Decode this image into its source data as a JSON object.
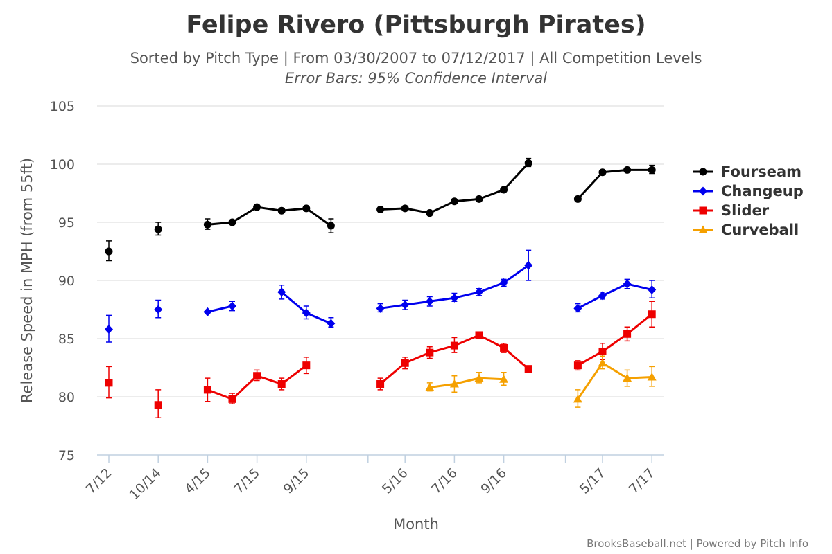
{
  "chart_data": {
    "type": "line",
    "title": "Felipe Rivero (Pittsburgh Pirates)",
    "subtitle": "Sorted by Pitch Type | From 03/30/2007 to 07/12/2017 | All Competition Levels",
    "subtitle2": "Error Bars: 95% Confidence Interval",
    "xlabel": "Month",
    "ylabel": "Release Speed in MPH (from 55ft)",
    "ylim": [
      75,
      105
    ],
    "yticks": [
      75,
      80,
      85,
      90,
      95,
      100,
      105
    ],
    "grid": true,
    "legend_position": "right",
    "credit": "BrooksBaseball.net | Powered by Pitch Info",
    "x_tick_labels": [
      {
        "slot": 0,
        "label": "7/12"
      },
      {
        "slot": 2,
        "label": "10/14"
      },
      {
        "slot": 4,
        "label": "4/15"
      },
      {
        "slot": 6,
        "label": "7/15"
      },
      {
        "slot": 8,
        "label": "9/15"
      },
      {
        "slot": 12,
        "label": "5/16"
      },
      {
        "slot": 14,
        "label": "7/16"
      },
      {
        "slot": 16,
        "label": "9/16"
      },
      {
        "slot": 20,
        "label": "5/17"
      },
      {
        "slot": 22,
        "label": "7/17"
      }
    ],
    "segment_breaks": [
      10.5,
      18.5
    ],
    "series": [
      {
        "name": "Fourseam",
        "color": "#000000",
        "marker": "circle",
        "points": [
          {
            "x": 0,
            "y": 92.5,
            "lo": 91.7,
            "hi": 93.4
          },
          {
            "x": 2,
            "y": 94.4,
            "lo": 93.9,
            "hi": 95.0
          },
          {
            "x": 4,
            "y": 94.8,
            "lo": 94.4,
            "hi": 95.3
          },
          {
            "x": 5,
            "y": 95.0
          },
          {
            "x": 6,
            "y": 96.3
          },
          {
            "x": 7,
            "y": 96.0
          },
          {
            "x": 8,
            "y": 96.2
          },
          {
            "x": 9,
            "y": 94.7,
            "lo": 94.1,
            "hi": 95.3
          },
          {
            "x": 11,
            "y": 96.1
          },
          {
            "x": 12,
            "y": 96.2
          },
          {
            "x": 13,
            "y": 95.8
          },
          {
            "x": 14,
            "y": 96.8
          },
          {
            "x": 15,
            "y": 97.0
          },
          {
            "x": 16,
            "y": 97.8
          },
          {
            "x": 17,
            "y": 100.1,
            "lo": 99.8,
            "hi": 100.5
          },
          {
            "x": 19,
            "y": 97.0
          },
          {
            "x": 20,
            "y": 99.3
          },
          {
            "x": 21,
            "y": 99.5
          },
          {
            "x": 22,
            "y": 99.5,
            "lo": 99.2,
            "hi": 99.9
          }
        ]
      },
      {
        "name": "Changeup",
        "color": "#0000ee",
        "marker": "diamond",
        "points": [
          {
            "x": 0,
            "y": 85.8,
            "lo": 84.7,
            "hi": 87.0
          },
          {
            "x": 2,
            "y": 87.5,
            "lo": 86.8,
            "hi": 88.3
          },
          {
            "x": 4,
            "y": 87.3
          },
          {
            "x": 5,
            "y": 87.8,
            "lo": 87.4,
            "hi": 88.2
          },
          {
            "x": 7,
            "y": 89.0,
            "lo": 88.4,
            "hi": 89.6
          },
          {
            "x": 8,
            "y": 87.2,
            "lo": 86.7,
            "hi": 87.8
          },
          {
            "x": 9,
            "y": 86.3,
            "lo": 86.0,
            "hi": 86.8
          },
          {
            "x": 11,
            "y": 87.6,
            "lo": 87.3,
            "hi": 88.0
          },
          {
            "x": 12,
            "y": 87.9,
            "lo": 87.5,
            "hi": 88.3
          },
          {
            "x": 13,
            "y": 88.2,
            "lo": 87.8,
            "hi": 88.6
          },
          {
            "x": 14,
            "y": 88.5,
            "lo": 88.2,
            "hi": 88.9
          },
          {
            "x": 15,
            "y": 89.0,
            "lo": 88.7,
            "hi": 89.3
          },
          {
            "x": 16,
            "y": 89.8,
            "lo": 89.5,
            "hi": 90.1
          },
          {
            "x": 17,
            "y": 91.3,
            "lo": 90.0,
            "hi": 92.6
          },
          {
            "x": 19,
            "y": 87.6,
            "lo": 87.3,
            "hi": 88.0
          },
          {
            "x": 20,
            "y": 88.7,
            "lo": 88.4,
            "hi": 89.0
          },
          {
            "x": 21,
            "y": 89.7,
            "lo": 89.3,
            "hi": 90.1
          },
          {
            "x": 22,
            "y": 89.2,
            "lo": 88.5,
            "hi": 90.0
          }
        ]
      },
      {
        "name": "Slider",
        "color": "#ee0000",
        "marker": "square",
        "points": [
          {
            "x": 0,
            "y": 81.2,
            "lo": 79.9,
            "hi": 82.6
          },
          {
            "x": 2,
            "y": 79.3,
            "lo": 78.2,
            "hi": 80.6
          },
          {
            "x": 4,
            "y": 80.6,
            "lo": 79.6,
            "hi": 81.6
          },
          {
            "x": 5,
            "y": 79.8,
            "lo": 79.4,
            "hi": 80.3
          },
          {
            "x": 6,
            "y": 81.8,
            "lo": 81.4,
            "hi": 82.3
          },
          {
            "x": 7,
            "y": 81.1,
            "lo": 80.6,
            "hi": 81.6
          },
          {
            "x": 8,
            "y": 82.7,
            "lo": 82.0,
            "hi": 83.4
          },
          {
            "x": 11,
            "y": 81.1,
            "lo": 80.6,
            "hi": 81.6
          },
          {
            "x": 12,
            "y": 82.9,
            "lo": 82.4,
            "hi": 83.4
          },
          {
            "x": 13,
            "y": 83.8,
            "lo": 83.3,
            "hi": 84.3
          },
          {
            "x": 14,
            "y": 84.4,
            "lo": 83.8,
            "hi": 85.1
          },
          {
            "x": 15,
            "y": 85.3
          },
          {
            "x": 16,
            "y": 84.2,
            "lo": 83.8,
            "hi": 84.6
          },
          {
            "x": 17,
            "y": 82.4
          },
          {
            "x": 19,
            "y": 82.7,
            "lo": 82.3,
            "hi": 83.1
          },
          {
            "x": 20,
            "y": 83.9,
            "lo": 83.2,
            "hi": 84.6
          },
          {
            "x": 21,
            "y": 85.4,
            "lo": 84.8,
            "hi": 86.0
          },
          {
            "x": 22,
            "y": 87.1,
            "lo": 86.0,
            "hi": 88.2
          }
        ]
      },
      {
        "name": "Curveball",
        "color": "#f5a000",
        "marker": "triangle",
        "points": [
          {
            "x": 13,
            "y": 80.8,
            "lo": 80.5,
            "hi": 81.2
          },
          {
            "x": 14,
            "y": 81.1,
            "lo": 80.4,
            "hi": 81.8
          },
          {
            "x": 15,
            "y": 81.6,
            "lo": 81.2,
            "hi": 82.1
          },
          {
            "x": 16,
            "y": 81.5,
            "lo": 81.0,
            "hi": 82.1
          },
          {
            "x": 19,
            "y": 79.8,
            "lo": 79.1,
            "hi": 80.6
          },
          {
            "x": 20,
            "y": 82.9,
            "lo": 82.4,
            "hi": 83.5
          },
          {
            "x": 21,
            "y": 81.6,
            "lo": 80.9,
            "hi": 82.3
          },
          {
            "x": 22,
            "y": 81.7,
            "lo": 80.9,
            "hi": 82.6
          }
        ]
      }
    ]
  }
}
